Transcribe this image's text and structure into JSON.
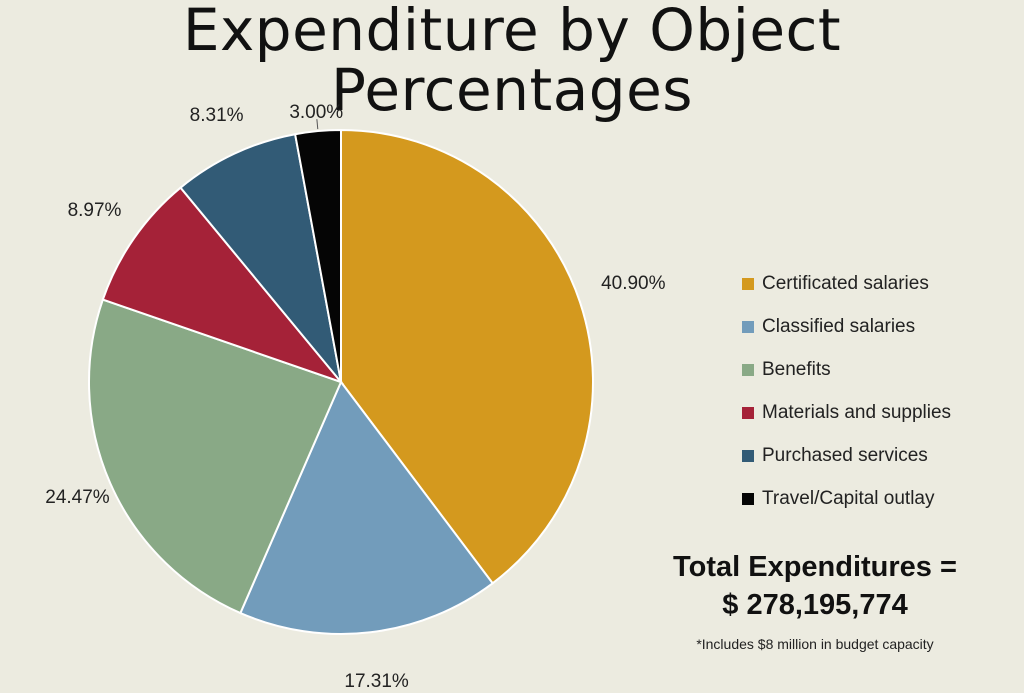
{
  "title": "Expenditure by Object Percentages",
  "chart_data": {
    "type": "pie",
    "categories": [
      "Certificated salaries",
      "Classified salaries",
      "Benefits",
      "Materials and supplies",
      "Purchased services",
      "Travel/Capital outlay"
    ],
    "values": [
      40.9,
      17.31,
      24.47,
      8.97,
      8.31,
      3.0
    ],
    "data_labels": [
      "40.90%",
      "17.31%",
      "24.47%",
      "8.97%",
      "8.31%",
      "3.00%"
    ],
    "colors": [
      "#d4991e",
      "#729cbb",
      "#89a986",
      "#a52238",
      "#325b76",
      "#050505"
    ],
    "legend_position": "right",
    "start": "top",
    "direction": "clockwise"
  },
  "total": {
    "line1": "Total Expenditures =",
    "line2": "$ 278,195,774"
  },
  "note": "*Includes $8 million in budget capacity"
}
